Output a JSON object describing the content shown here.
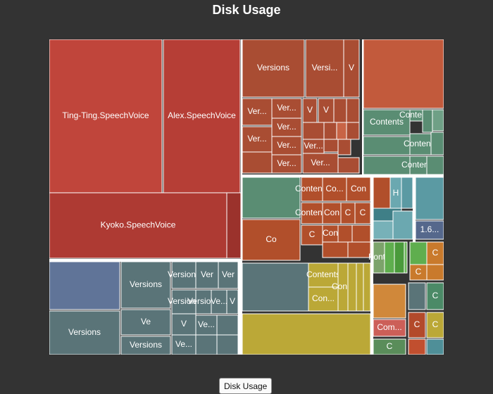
{
  "title": "Disk Usage",
  "footer": {
    "button_label": "Disk Usage"
  },
  "chart_data": {
    "type": "treemap",
    "title": "Disk Usage",
    "tiles": [
      {
        "label": "Ting-Ting.SpeechVoice",
        "color": "#c0453b"
      },
      {
        "label": "Alex.SpeechVoice",
        "color": "#b63e36"
      },
      {
        "label": "Kyoko.SpeechVoice",
        "color": "#ae3a33"
      },
      {
        "label": "",
        "color": "#9b322c"
      },
      {
        "label": "Versions",
        "color": "#a94d33"
      },
      {
        "label": "Versi...",
        "color": "#a94d33"
      },
      {
        "label": "V",
        "color": "#a94d33"
      },
      {
        "label": "Ver...",
        "color": "#a94d33"
      },
      {
        "label": "Ver...",
        "color": "#a94d33"
      },
      {
        "label": "V",
        "color": "#a94d33"
      },
      {
        "label": "V",
        "color": "#a94d33"
      },
      {
        "label": "",
        "color": "#a94d33"
      },
      {
        "label": "",
        "color": "#a94d33"
      },
      {
        "label": "Ver...",
        "color": "#a94d33"
      },
      {
        "label": "Ver...",
        "color": "#a94d33"
      },
      {
        "label": "",
        "color": "#a94d33"
      },
      {
        "label": "",
        "color": "#a94d33"
      },
      {
        "label": "",
        "color": "#c86446"
      },
      {
        "label": "",
        "color": "#a94d33"
      },
      {
        "label": "Ver...",
        "color": "#a94d33"
      },
      {
        "label": "Ver...",
        "color": "#a94d33"
      },
      {
        "label": "",
        "color": "#a94d33"
      },
      {
        "label": "",
        "color": "#a94d33"
      },
      {
        "label": "",
        "color": "#a94d33"
      },
      {
        "label": "Ver...",
        "color": "#a94d33"
      },
      {
        "label": "Ver...",
        "color": "#a94d33"
      },
      {
        "label": "",
        "color": "#a94d33"
      },
      {
        "label": "",
        "color": "#c25a3c"
      },
      {
        "label": "Contents",
        "color": "#5a8d73"
      },
      {
        "label": "Contents",
        "color": "#5a8d73"
      },
      {
        "label": "",
        "color": "#5a8d73"
      },
      {
        "label": "",
        "color": "#6fa086"
      },
      {
        "label": "",
        "color": "#5a8d73"
      },
      {
        "label": "Contents",
        "color": "#5a8d73"
      },
      {
        "label": "",
        "color": "#5a8d73"
      },
      {
        "label": "",
        "color": "#5a8d73"
      },
      {
        "label": "Contents",
        "color": "#5a8d73"
      },
      {
        "label": "",
        "color": "#5a8d73"
      },
      {
        "label": "",
        "color": "#5a8d73"
      },
      {
        "label": "Contents",
        "color": "#b14f2b"
      },
      {
        "label": "Co...",
        "color": "#b14f2b"
      },
      {
        "label": "Con",
        "color": "#b14f2b"
      },
      {
        "label": "Co",
        "color": "#b14f2b"
      },
      {
        "label": "Contents",
        "color": "#b14f2b"
      },
      {
        "label": "Con",
        "color": "#b14f2b"
      },
      {
        "label": "C",
        "color": "#b14f2b"
      },
      {
        "label": "C",
        "color": "#b14f2b"
      },
      {
        "label": "C",
        "color": "#b14f2b"
      },
      {
        "label": "Con",
        "color": "#b14f2b"
      },
      {
        "label": "",
        "color": "#b14f2b"
      },
      {
        "label": "",
        "color": "#b14f2b"
      },
      {
        "label": "",
        "color": "#b14f2b"
      },
      {
        "label": "",
        "color": "#b14f2b"
      },
      {
        "label": "",
        "color": "#b14f2b"
      },
      {
        "label": "H",
        "color": "#6ba8b0"
      },
      {
        "label": "",
        "color": "#5b9aa3"
      },
      {
        "label": "",
        "color": "#3f7f87"
      },
      {
        "label": "",
        "color": "#77b1b8"
      },
      {
        "label": "",
        "color": "#6ba8b0"
      },
      {
        "label": "",
        "color": "#5b9aa3"
      },
      {
        "label": "1.6...",
        "color": "#55688c"
      },
      {
        "label": "",
        "color": "#607498"
      },
      {
        "label": "Versions",
        "color": "#5a7478"
      },
      {
        "label": "Versions",
        "color": "#5a7478"
      },
      {
        "label": "Versions",
        "color": "#5a7478"
      },
      {
        "label": "Ver",
        "color": "#5a7478"
      },
      {
        "label": "Ver",
        "color": "#5a7478"
      },
      {
        "label": "Ve",
        "color": "#5a7478"
      },
      {
        "label": "Versions",
        "color": "#5a7478"
      },
      {
        "label": "Versions",
        "color": "#5a7478"
      },
      {
        "label": "Versions",
        "color": "#5a7478"
      },
      {
        "label": "Ve...",
        "color": "#5a7478"
      },
      {
        "label": "V",
        "color": "#5a7478"
      },
      {
        "label": "V",
        "color": "#5a7478"
      },
      {
        "label": "Ve...",
        "color": "#5a7478"
      },
      {
        "label": "Ve...",
        "color": "#5a7478"
      },
      {
        "label": "",
        "color": "#5a7478"
      },
      {
        "label": "",
        "color": "#5a7478"
      },
      {
        "label": "",
        "color": "#5a7478"
      },
      {
        "label": "",
        "color": "#5a7478"
      },
      {
        "label": "Contents",
        "color": "#bba837"
      },
      {
        "label": "Con...",
        "color": "#bba837"
      },
      {
        "label": "Con...",
        "color": "#bba837"
      },
      {
        "label": "",
        "color": "#bba837"
      },
      {
        "label": "",
        "color": "#bba837"
      },
      {
        "label": "",
        "color": "#bba837"
      },
      {
        "label": "",
        "color": "#bba837"
      },
      {
        "label": "Fonts",
        "color": "#7ca36b"
      },
      {
        "label": "",
        "color": "#5fae4e"
      },
      {
        "label": "",
        "color": "#4a9a3b"
      },
      {
        "label": "",
        "color": "#6cb65b"
      },
      {
        "label": "",
        "color": "#5fae4e"
      },
      {
        "label": "C",
        "color": "#c97a2c"
      },
      {
        "label": "C",
        "color": "#c97a2c"
      },
      {
        "label": "",
        "color": "#c97a2c"
      },
      {
        "label": "",
        "color": "#d0883a"
      },
      {
        "label": "Com...",
        "color": "#cc5f58"
      },
      {
        "label": "",
        "color": "#5a7478"
      },
      {
        "label": "C",
        "color": "#4b8a67"
      },
      {
        "label": "C",
        "color": "#b34a2b"
      },
      {
        "label": "C",
        "color": "#bba837"
      },
      {
        "label": "C",
        "color": "#5a8d5a"
      },
      {
        "label": "",
        "color": "#c14f2f"
      },
      {
        "label": "",
        "color": "#4f8f98"
      },
      {
        "label": "",
        "color": "#6a7ca8"
      }
    ]
  }
}
